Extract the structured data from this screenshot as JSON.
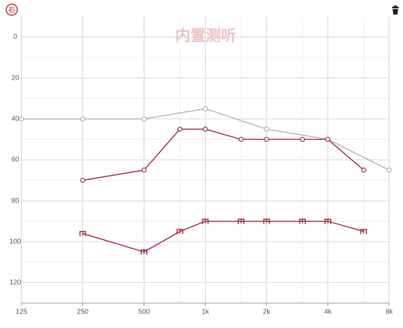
{
  "chart_data": {
    "type": "line",
    "badge": "右",
    "watermark": "内置测听",
    "x_scale": "log",
    "xlim": [
      125,
      8000
    ],
    "xticks": [
      125,
      250,
      500,
      {
        "value": 1000,
        "label": "1k"
      },
      {
        "value": 2000,
        "label": "2k"
      },
      {
        "value": 4000,
        "label": "4k"
      },
      {
        "value": 8000,
        "label": "8k"
      }
    ],
    "x_minor_ticks": [
      750,
      1500,
      3000,
      6000
    ],
    "ylim": [
      -10,
      130
    ],
    "y_inverted": true,
    "yticks": [
      0,
      20,
      40,
      60,
      80,
      100,
      120
    ],
    "y_minor_ticks": [
      10,
      30,
      50,
      70,
      90,
      110
    ],
    "grid": true,
    "series": [
      {
        "color": "#b3b3b3",
        "marker": "circle",
        "x": [
          125,
          250,
          500,
          1000,
          2000,
          4000,
          8000
        ],
        "values": [
          40,
          40,
          40,
          35,
          45,
          50,
          65
        ]
      },
      {
        "color": "#a3293d",
        "marker": "circle",
        "x": [
          250,
          500,
          750,
          1000,
          1500,
          2000,
          3000,
          4000,
          6000
        ],
        "values": [
          70,
          65,
          45,
          45,
          50,
          50,
          50,
          50,
          65
        ]
      },
      {
        "color": "#a3293d",
        "marker": "bracket",
        "x": [
          250,
          500,
          750,
          1000,
          1500,
          2000,
          3000,
          4000,
          6000
        ],
        "values": [
          96,
          105,
          95,
          90,
          90,
          90,
          90,
          90,
          95
        ]
      }
    ]
  }
}
